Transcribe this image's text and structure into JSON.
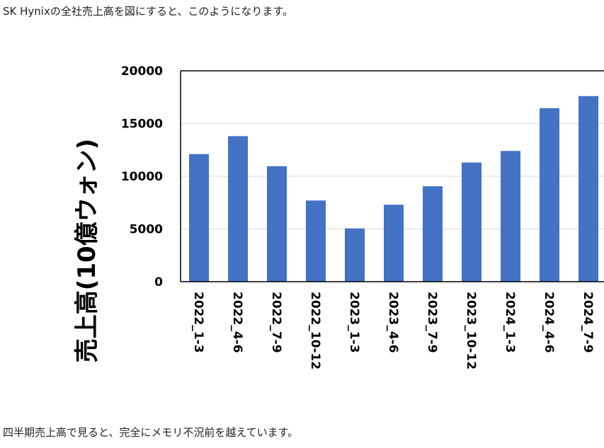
{
  "article": {
    "intro_text": "SK Hynixの全社売上高を図にすると、このようになります。",
    "outro_text": "四半期売上高で見ると、完全にメモリ不況前を越えています。"
  },
  "chart_data": {
    "type": "bar",
    "title": "",
    "xlabel": "",
    "ylabel": "売上高(10億ウォン)",
    "categories": [
      "2022_1-3",
      "2022_4-6",
      "2022_7-9",
      "2022_10-12",
      "2023_1-3",
      "2023_4-6",
      "2023_7-9",
      "2023_10-12",
      "2024_1-3",
      "2024_4-6",
      "2024_7-9"
    ],
    "values": [
      12100,
      13800,
      10950,
      7700,
      5050,
      7300,
      9050,
      11300,
      12400,
      16450,
      17600
    ],
    "ylim": [
      0,
      20000
    ],
    "yticks": [
      "0",
      "5000",
      "10000",
      "15000",
      "20000"
    ],
    "grid": true,
    "bar_color": "#4472C4",
    "grid_color": "#D9D9D9"
  }
}
